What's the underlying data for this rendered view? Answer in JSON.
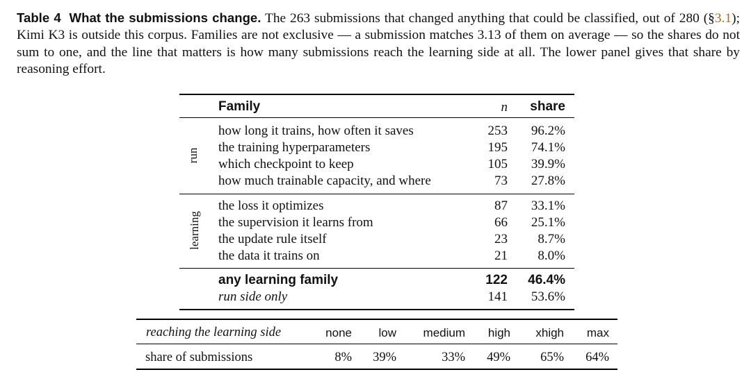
{
  "caption": {
    "label": "Table 4",
    "title": "What the submissions change.",
    "text_before_ref": " The 263 submissions that changed anything that could be classified, out of 280 (§",
    "ref": "3.1",
    "text_after_ref": "); Kimi K3 is outside this corpus. Families are not exclusive — a submission matches 3.13 of them on average — so the shares do not sum to one, and the line that matters is how many submissions reach the learning side at all. The lower panel gives that share by reasoning effort."
  },
  "upper_table": {
    "headers": {
      "family": "Family",
      "n": "n",
      "share": "share"
    },
    "groups": [
      {
        "label": "run",
        "rows": [
          {
            "family": "how long it trains, how often it saves",
            "n": "253",
            "share": "96.2%"
          },
          {
            "family": "the training hyperparameters",
            "n": "195",
            "share": "74.1%"
          },
          {
            "family": "which checkpoint to keep",
            "n": "105",
            "share": "39.9%"
          },
          {
            "family": "how much trainable capacity, and where",
            "n": "73",
            "share": "27.8%"
          }
        ]
      },
      {
        "label": "learning",
        "rows": [
          {
            "family": "the loss it optimizes",
            "n": "87",
            "share": "33.1%"
          },
          {
            "family": "the supervision it learns from",
            "n": "66",
            "share": "25.1%"
          },
          {
            "family": "the update rule itself",
            "n": "23",
            "share": "8.7%"
          },
          {
            "family": "the data it trains on",
            "n": "21",
            "share": "8.0%"
          }
        ]
      }
    ],
    "summary": [
      {
        "family": "any learning family",
        "n": "122",
        "share": "46.4%"
      },
      {
        "family": "run side only",
        "n": "141",
        "share": "53.6%"
      }
    ]
  },
  "lower_table": {
    "header_label": "reaching the learning side",
    "efforts": [
      "none",
      "low",
      "medium",
      "high",
      "xhigh",
      "max"
    ],
    "row_label": "share of submissions",
    "values": [
      "8%",
      "39%",
      "33%",
      "49%",
      "65%",
      "64%"
    ]
  }
}
